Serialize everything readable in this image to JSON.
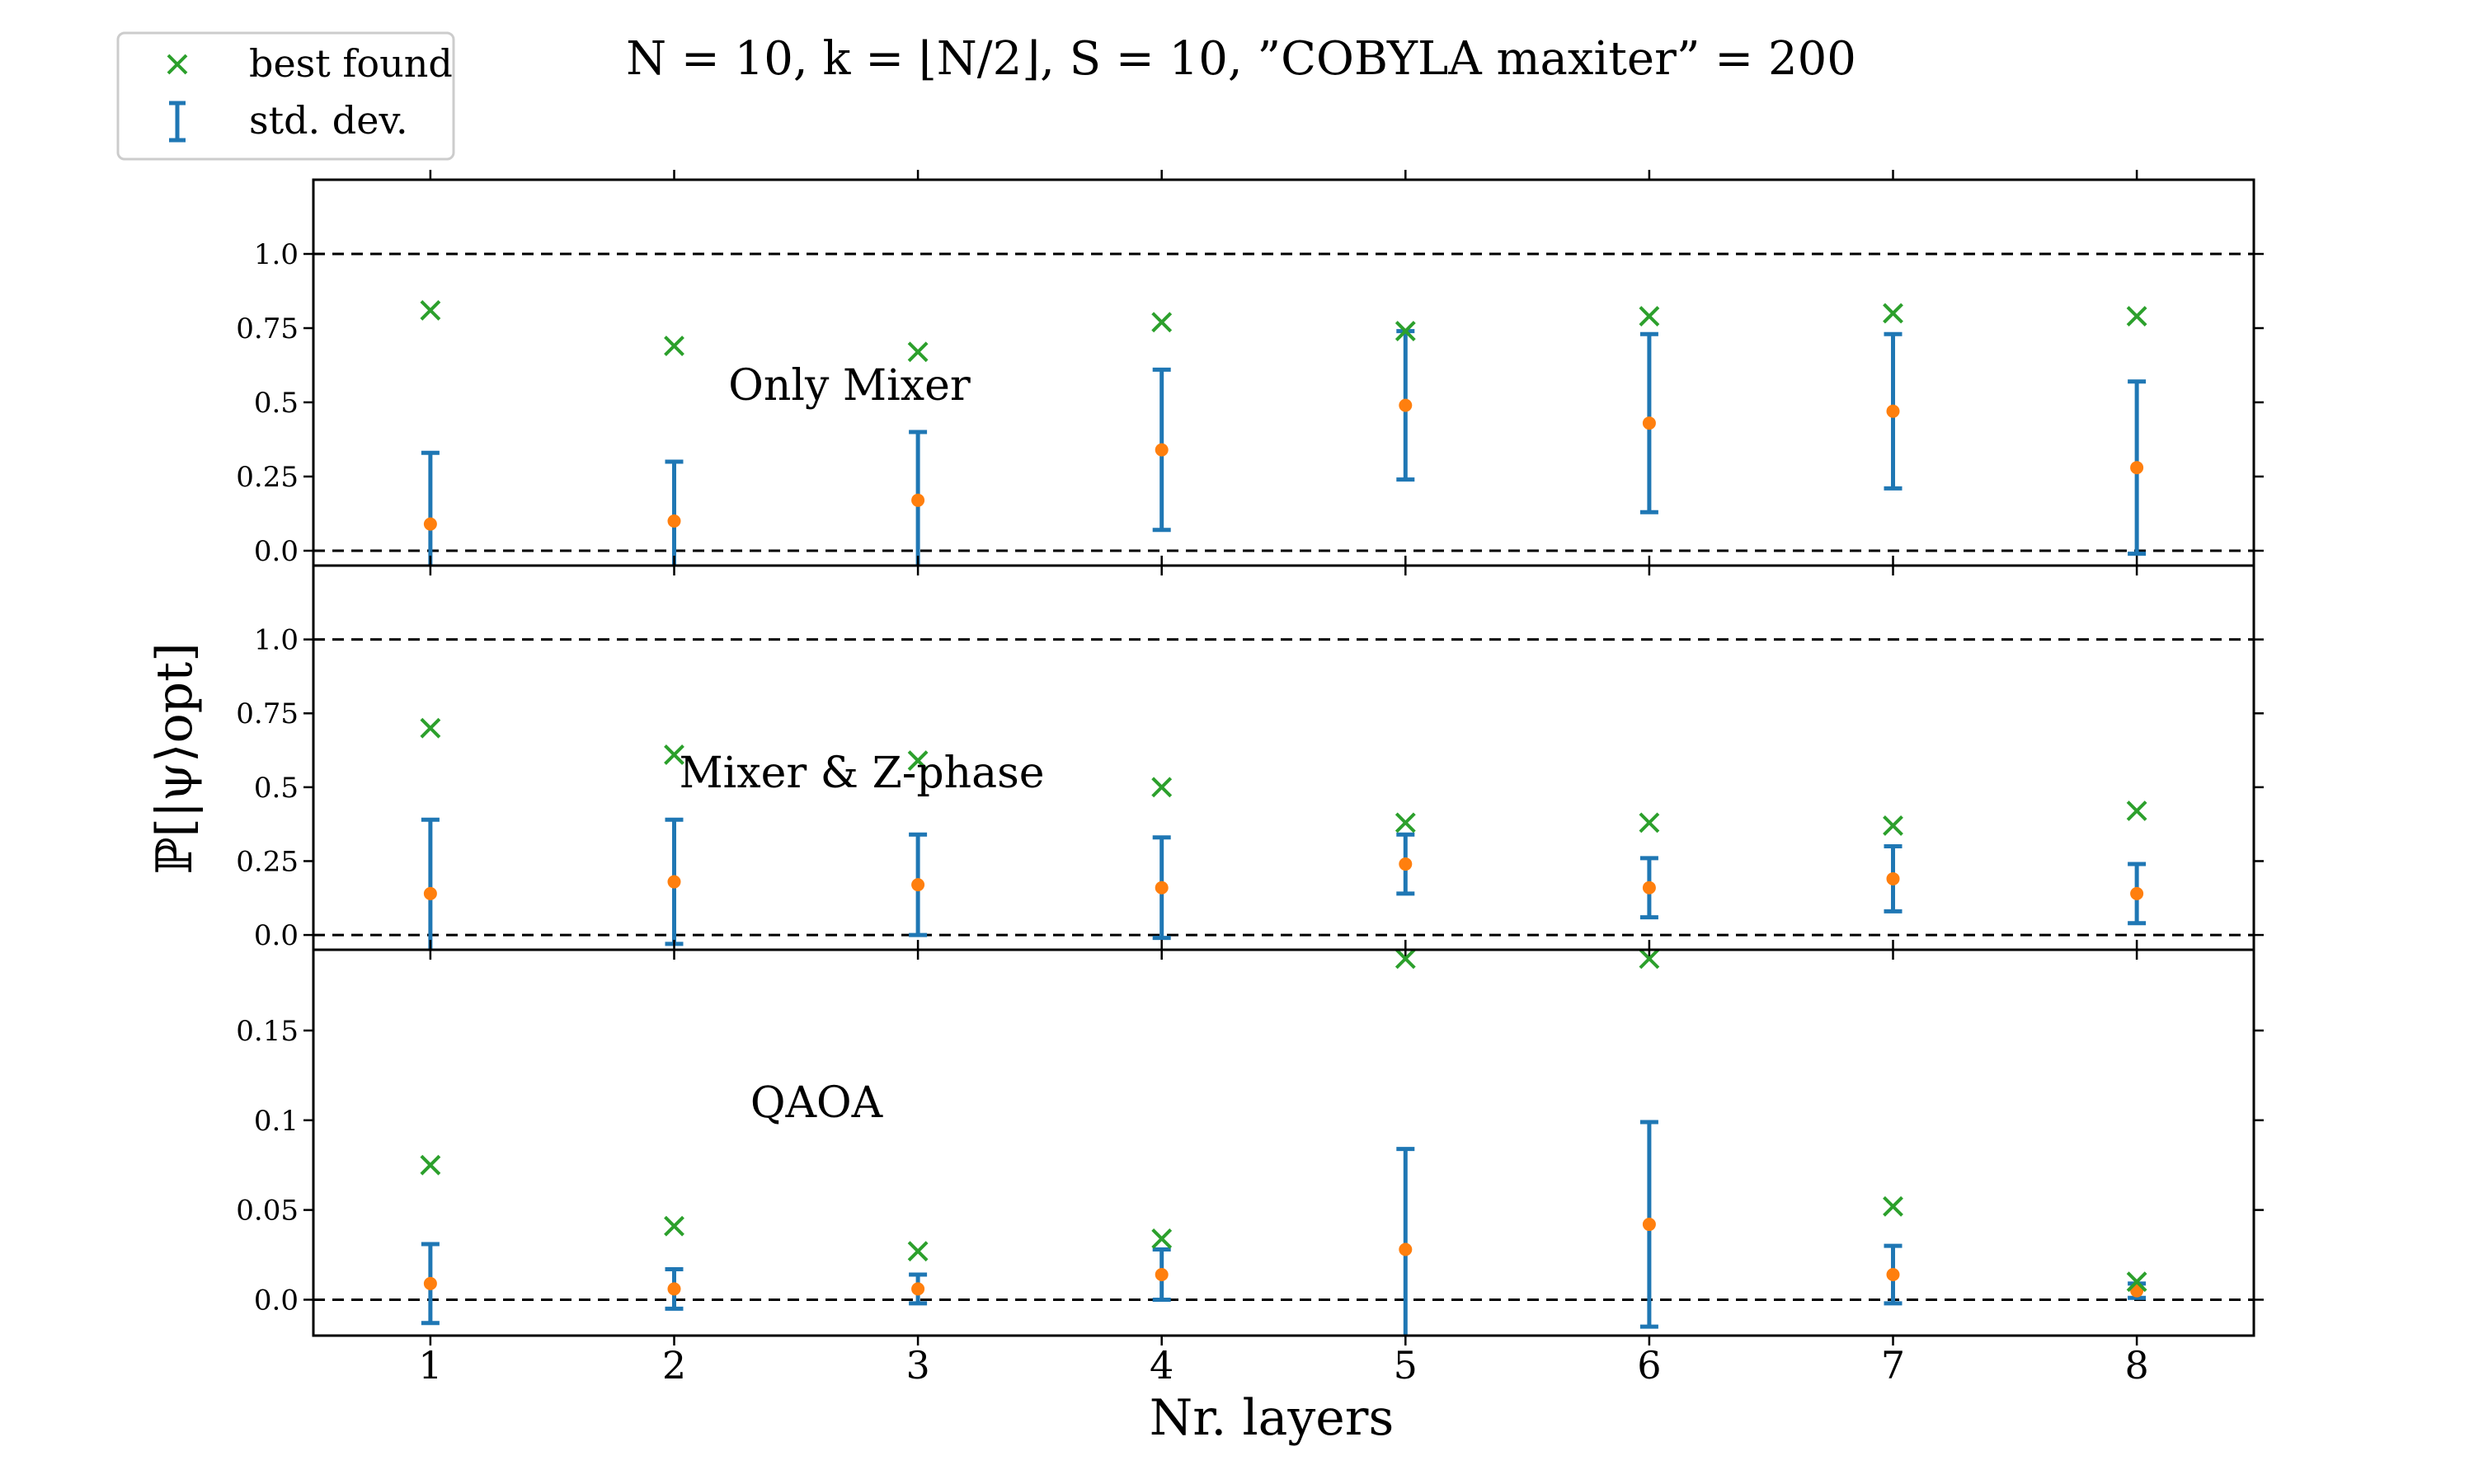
{
  "title": "N = 10,    k = ⌊N/2⌋,    S = 10,    ”COBYLA maxiter” = 200",
  "colors": {
    "best": "#2ca02c",
    "mean": "#ff7f0e",
    "errorbar": "#1f77b4",
    "reference": "#000000"
  },
  "legend": {
    "best_label": "best found",
    "std_label": "std. dev."
  },
  "chart_data": {
    "type": "scatter",
    "xlabel": "Nr. layers",
    "ylabel": "ℙ[|ψ⟩opt]",
    "x": [
      1,
      2,
      3,
      4,
      5,
      6,
      7,
      8
    ],
    "reference_lines": [
      0.0,
      1.0
    ],
    "panels": [
      {
        "name": "Only Mixer",
        "ylim": [
          -0.05,
          1.25
        ],
        "yticks": [
          0.0,
          0.25,
          0.5,
          0.75,
          1.0
        ],
        "ytick_labels": [
          "0.0",
          "0.25",
          "0.5",
          "0.75",
          "1.0"
        ],
        "best": [
          0.81,
          0.69,
          0.67,
          0.77,
          0.74,
          0.79,
          0.8,
          0.79
        ],
        "mean": [
          0.09,
          0.1,
          0.17,
          0.34,
          0.49,
          0.43,
          0.47,
          0.28
        ],
        "std": [
          0.24,
          0.2,
          0.23,
          0.27,
          0.25,
          0.3,
          0.26,
          0.29
        ]
      },
      {
        "name": "Mixer & Z-phase",
        "ylim": [
          -0.05,
          1.25
        ],
        "yticks": [
          0.0,
          0.25,
          0.5,
          0.75,
          1.0
        ],
        "ytick_labels": [
          "0.0",
          "0.25",
          "0.5",
          "0.75",
          "1.0"
        ],
        "best": [
          0.7,
          0.61,
          0.59,
          0.5,
          0.38,
          0.38,
          0.37,
          0.42
        ],
        "mean": [
          0.14,
          0.18,
          0.17,
          0.16,
          0.24,
          0.16,
          0.19,
          0.14
        ],
        "std": [
          0.25,
          0.21,
          0.17,
          0.17,
          0.1,
          0.1,
          0.11,
          0.1
        ]
      },
      {
        "name": "QAOA",
        "ylim": [
          -0.02,
          0.195
        ],
        "yticks": [
          0.0,
          0.05,
          0.1,
          0.15
        ],
        "ytick_labels": [
          "0.0",
          "0.05",
          "0.1",
          "0.15"
        ],
        "best": [
          0.075,
          0.041,
          0.027,
          0.034,
          0.19,
          0.19,
          0.052,
          0.01
        ],
        "mean": [
          0.009,
          0.006,
          0.006,
          0.014,
          0.028,
          0.042,
          0.014,
          0.005
        ],
        "std": [
          0.022,
          0.011,
          0.008,
          0.014,
          0.056,
          0.057,
          0.016,
          0.004
        ]
      }
    ]
  }
}
